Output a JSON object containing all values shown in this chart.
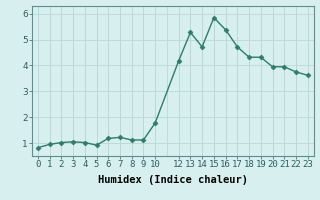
{
  "x": [
    0,
    1,
    2,
    3,
    4,
    5,
    6,
    7,
    8,
    9,
    10,
    12,
    13,
    14,
    15,
    16,
    17,
    18,
    19,
    20,
    21,
    22,
    23
  ],
  "y": [
    0.82,
    0.95,
    1.02,
    1.05,
    1.02,
    0.92,
    1.18,
    1.22,
    1.12,
    1.12,
    1.78,
    4.18,
    5.28,
    4.72,
    5.85,
    5.38,
    4.72,
    4.32,
    4.32,
    3.95,
    3.95,
    3.75,
    3.62
  ],
  "line_color": "#2d7d6e",
  "marker": "D",
  "marker_size": 2.5,
  "bg_color": "#d8eff0",
  "grid_color": "#b8d8da",
  "xlabel": "Humidex (Indice chaleur)",
  "ylim": [
    0.5,
    6.3
  ],
  "xlim": [
    -0.5,
    23.5
  ],
  "yticks": [
    1,
    2,
    3,
    4,
    5,
    6
  ],
  "xticks": [
    0,
    1,
    2,
    3,
    4,
    5,
    6,
    7,
    8,
    9,
    10,
    12,
    13,
    14,
    15,
    16,
    17,
    18,
    19,
    20,
    21,
    22,
    23
  ],
  "xtick_labels": [
    "0",
    "1",
    "2",
    "3",
    "4",
    "5",
    "6",
    "7",
    "8",
    "9",
    "10",
    "12",
    "13",
    "14",
    "15",
    "16",
    "17",
    "18",
    "19",
    "20",
    "21",
    "22",
    "23"
  ],
  "xlabel_fontsize": 7.5,
  "tick_fontsize": 6.5,
  "linewidth": 1.0
}
